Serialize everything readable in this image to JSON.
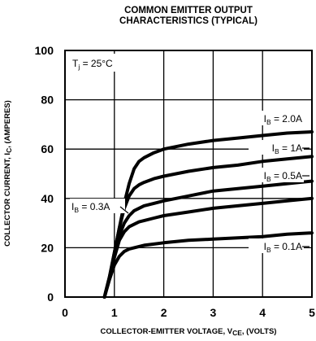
{
  "chart_data": {
    "type": "line",
    "title": [
      "COMMON EMITTER OUTPUT",
      "CHARACTERISTICS (TYPICAL)"
    ],
    "annotation": {
      "main": "T",
      "sub": "j",
      "rest": " = 25°C"
    },
    "xlabel": {
      "main": "COLLECTOR-EMITTER VOLTAGE, V",
      "sub": "CE",
      "rest": ", (VOLTS)"
    },
    "ylabel": {
      "main": "COLLECTOR CURRENT, I",
      "sub": "C",
      "rest": ", (AMPERES)"
    },
    "xlim": [
      0,
      5
    ],
    "ylim": [
      0,
      100
    ],
    "xticks": [
      "0",
      "1",
      "2",
      "3",
      "4",
      "5"
    ],
    "yticks": [
      "0",
      "20",
      "40",
      "60",
      "80",
      "100"
    ],
    "grid": true,
    "series": [
      {
        "name": {
          "main": "I",
          "sub": "B",
          "rest": " = 2.0A"
        },
        "x": [
          0.8,
          0.9,
          1.0,
          1.1,
          1.2,
          1.3,
          1.4,
          1.5,
          1.6,
          1.8,
          2.0,
          2.5,
          3.0,
          3.5,
          4.0,
          4.5,
          5.0
        ],
        "y": [
          0,
          8,
          18,
          28,
          38,
          46,
          52,
          55,
          56.5,
          58.5,
          60,
          62,
          63.5,
          64.5,
          65.5,
          66.5,
          67
        ]
      },
      {
        "name": {
          "main": "I",
          "sub": "B",
          "rest": " = 1A"
        },
        "x": [
          0.8,
          0.9,
          1.0,
          1.1,
          1.2,
          1.3,
          1.4,
          1.5,
          1.6,
          1.8,
          2.0,
          2.5,
          3.0,
          3.5,
          4.0,
          4.5,
          5.0
        ],
        "y": [
          0,
          8,
          18,
          28,
          36,
          41,
          44,
          45.5,
          46.5,
          48,
          49,
          51,
          52.5,
          53.5,
          55,
          56,
          57
        ]
      },
      {
        "name": {
          "main": "I",
          "sub": "B",
          "rest": " = 0.5A"
        },
        "x": [
          0.8,
          0.9,
          1.0,
          1.1,
          1.2,
          1.3,
          1.4,
          1.5,
          1.6,
          1.8,
          2.0,
          2.5,
          3.0,
          3.5,
          4.0,
          4.5,
          5.0
        ],
        "y": [
          0,
          8,
          17,
          25,
          30,
          33,
          35,
          36,
          37,
          38,
          39,
          41,
          43,
          44,
          45,
          46,
          47
        ]
      },
      {
        "name": {
          "main": "I",
          "sub": "B",
          "rest": " = 0.3A"
        },
        "x": [
          0.8,
          0.9,
          1.0,
          1.1,
          1.2,
          1.3,
          1.4,
          1.5,
          1.6,
          1.8,
          2.0,
          2.5,
          3.0,
          3.5,
          4.0,
          4.5,
          5.0
        ],
        "y": [
          0,
          8,
          16,
          23,
          26.5,
          28.5,
          29.5,
          30.5,
          31,
          32,
          33,
          34.5,
          36,
          37,
          38,
          39,
          40
        ]
      },
      {
        "name": {
          "main": "I",
          "sub": "B",
          "rest": " = 0.1A"
        },
        "x": [
          0.8,
          0.9,
          1.0,
          1.1,
          1.2,
          1.3,
          1.4,
          1.5,
          1.6,
          1.8,
          2.0,
          2.5,
          3.0,
          3.5,
          4.0,
          4.5,
          5.0
        ],
        "y": [
          0,
          7,
          13,
          16.5,
          18.5,
          19.5,
          20,
          20.5,
          21,
          21.5,
          22,
          23,
          23.5,
          24,
          24.5,
          25.5,
          26
        ]
      }
    ]
  }
}
